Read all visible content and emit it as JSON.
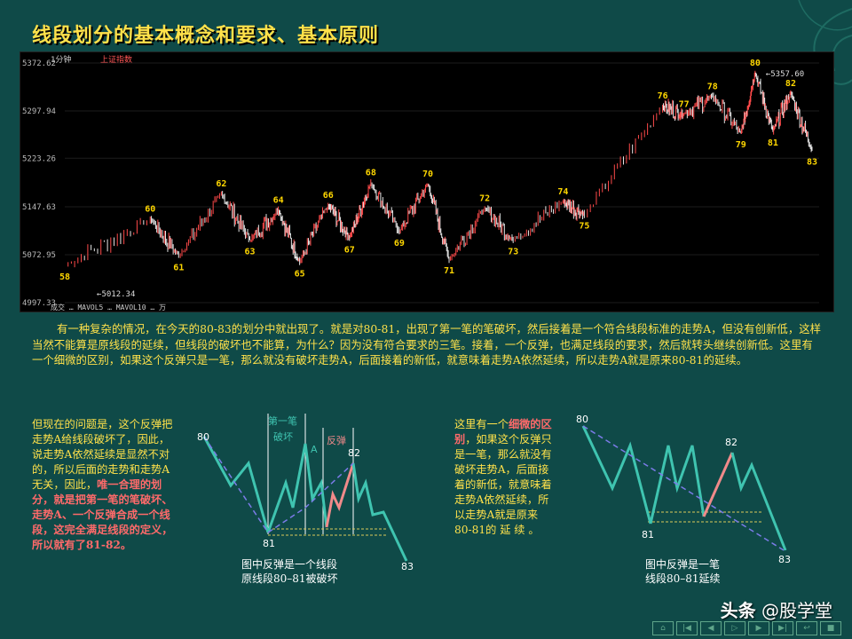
{
  "slide": {
    "title": "线段划分的基本概念和要求、基本原则"
  },
  "kline_chart": {
    "header_period": "1分钟",
    "header_index": "上证指数",
    "y_ticks": [
      "5372.62",
      "5297.94",
      "5223.26",
      "5147.63",
      "5072.95",
      "4997.33"
    ],
    "low_price_label": "5012.34",
    "high_price_label": "5357.60",
    "footer_text": "成交 … MAVOL5 … MAVOL10 … 万",
    "points": [
      {
        "label": "58",
        "t": 0.0,
        "v": 5055
      },
      {
        "label": "60",
        "t": 0.12,
        "v": 5128
      },
      {
        "label": "61",
        "t": 0.16,
        "v": 5070
      },
      {
        "label": "62",
        "t": 0.22,
        "v": 5168
      },
      {
        "label": "63",
        "t": 0.26,
        "v": 5095
      },
      {
        "label": "64",
        "t": 0.3,
        "v": 5142
      },
      {
        "label": "65",
        "t": 0.33,
        "v": 5060
      },
      {
        "label": "66",
        "t": 0.37,
        "v": 5150
      },
      {
        "label": "67",
        "t": 0.4,
        "v": 5098
      },
      {
        "label": "68",
        "t": 0.43,
        "v": 5185
      },
      {
        "label": "69",
        "t": 0.47,
        "v": 5108
      },
      {
        "label": "70",
        "t": 0.51,
        "v": 5183
      },
      {
        "label": "71",
        "t": 0.54,
        "v": 5065
      },
      {
        "label": "72",
        "t": 0.59,
        "v": 5145
      },
      {
        "label": "73",
        "t": 0.63,
        "v": 5095
      },
      {
        "label": "74",
        "t": 0.7,
        "v": 5155
      },
      {
        "label": "75",
        "t": 0.73,
        "v": 5135
      },
      {
        "label": "76",
        "t": 0.84,
        "v": 5305
      },
      {
        "label": "77",
        "t": 0.87,
        "v": 5292
      },
      {
        "label": "78",
        "t": 0.91,
        "v": 5320
      },
      {
        "label": "79",
        "t": 0.95,
        "v": 5262
      },
      {
        "label": "80",
        "t": 0.97,
        "v": 5357
      },
      {
        "label": "81",
        "t": 0.995,
        "v": 5265
      },
      {
        "label": "82",
        "t": 1.02,
        "v": 5325
      },
      {
        "label": "83",
        "t": 1.05,
        "v": 5235
      }
    ]
  },
  "paragraph": "有一种复杂的情况，在今天的80-83的划分中就出现了。就是对80-81，出现了第一笔的笔破坏，然后接着是一个符合线段标准的走势A，但没有创新低，这样当然不能算是原线段的延续，但线段的破坏也不能算，为什么？因为没有符合要求的三笔。接着，一个反弹，也满足线段的要求，然后就转头继续创新低。这里有一个细微的区别，如果这个反弹只是一笔，那么就没有破坏走势A，后面接着的新低，就意味着走势A依然延续，所以走势A就是原来80-81的延续。",
  "left_text": {
    "normal": "但现在的问题是，这个反弹把走势A给线段破坏了，因此，说走势A依然延续是显然不对的，所以后面的走势和走势A无关，因此，",
    "highlight": "唯一合理的划分，就是把第一笔的笔破坏、走势A、一个反弹合成一个线段，这完全满足线段的定义，所以就有了81-82。"
  },
  "diagram1": {
    "label_first_stroke": "第一笔",
    "label_break": "破坏",
    "label_A": "A",
    "label_rebound": "反弹",
    "label_80": "80",
    "label_81": "81",
    "label_82": "82",
    "label_83": "83",
    "caption_line1": "图中反弹是一个线段",
    "caption_line2": "原线段80–81被破坏"
  },
  "mid_text": {
    "p1": "这里有一个",
    "highlight": "细微的区别",
    "p2": "，如果这个反弹只是一笔，那么就没有破坏走势A，后面接着的新低，就意味着走势A依然延续，所以走势A就是原来80-81的  延  续  。"
  },
  "diagram2": {
    "label_80": "80",
    "label_81": "81",
    "label_82": "82",
    "label_83": "83",
    "caption_line1": "图中反弹是一笔",
    "caption_line2": "线段80–81延续"
  },
  "watermark": {
    "brand": "头条",
    "account": "@股学堂"
  },
  "colors": {
    "title": "#ffe14a",
    "body_text": "#ffe14a",
    "highlight": "#ff6a6a",
    "diagram_line": "#3fc4b0",
    "diagram_red": "#f08a8a",
    "dashed": "#7b7be8"
  },
  "nav_buttons": [
    "home-icon",
    "prev-start-icon",
    "prev-icon",
    "play-icon",
    "next-icon",
    "next-end-icon",
    "return-icon",
    "end-icon"
  ]
}
